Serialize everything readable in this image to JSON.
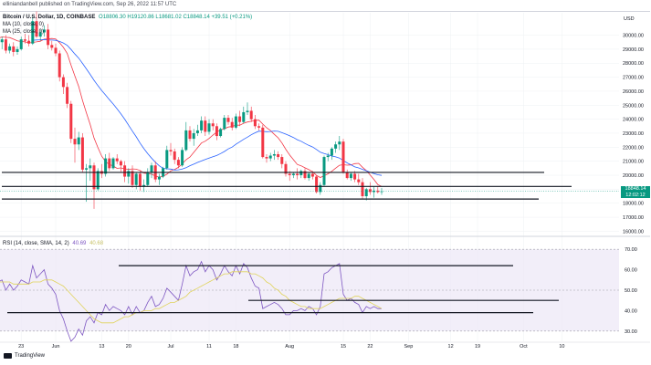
{
  "header": {
    "text": "elliniandanbell published on TradingView.com, Sep 26, 2022 11:57 UTC"
  },
  "legend": {
    "symbol": "Bitcoin / U.S. Dollar, 1D, COINBASE",
    "ohlc": "O18806.30 H19120.86 L18681.02 C18848.14 +39.51 (+0.21%)",
    "ma1": "MA (10, close, 0)",
    "ma2": "MA (25, close, 0)"
  },
  "price_badge": {
    "price": "18848.14",
    "countdown": "12:02:12"
  },
  "rsi_legend": {
    "name": "RSI (14, close, SMA, 14, 2)",
    "value1": "40.69",
    "value2": "40.68"
  },
  "footer": {
    "brand": "TradingView"
  },
  "colors": {
    "up": "#089981",
    "down": "#f23645",
    "ma_fast": "#f23645",
    "ma_slow": "#2962ff",
    "rsi": "#7e57c2",
    "rsi_ma": "#e0d35a",
    "rsi_band": "#ede7f6",
    "grid": "#eef0f3"
  },
  "chart_data": [
    {
      "type": "candlestick",
      "title": "Bitcoin / U.S. Dollar, 1D, COINBASE",
      "y_axis_label": "USD",
      "ylim": [
        15700,
        31600
      ],
      "y_ticks": [
        16000,
        17000,
        18000,
        19000,
        20000,
        21000,
        22000,
        23000,
        24000,
        25000,
        26000,
        27000,
        28000,
        29000,
        30000
      ],
      "x_labels": [
        "23",
        "Jun",
        "13",
        "20",
        "Jul",
        "11",
        "18",
        "Aug",
        "15",
        "22",
        "Sep",
        "12",
        "19",
        "Oct",
        "10"
      ],
      "x_label_days": [
        -9,
        0,
        12,
        19,
        30,
        40,
        47,
        61,
        75,
        82,
        92,
        103,
        110,
        122,
        132
      ],
      "candles_day_offset_from_jun1": -30,
      "candles": [
        [
          29000,
          29500,
          28500,
          29300
        ],
        [
          29300,
          30200,
          29000,
          29900
        ],
        [
          29900,
          30400,
          29500,
          30000
        ],
        [
          30000,
          30500,
          29800,
          30200
        ],
        [
          30200,
          30400,
          28800,
          29100
        ],
        [
          29100,
          29300,
          28600,
          29200
        ],
        [
          29200,
          29500,
          28700,
          28900
        ],
        [
          28900,
          29300,
          28300,
          29100
        ],
        [
          29100,
          29600,
          28900,
          29400
        ],
        [
          29400,
          30100,
          29200,
          29900
        ],
        [
          29900,
          30600,
          29600,
          30300
        ],
        [
          30300,
          31000,
          30000,
          30100
        ],
        [
          30100,
          30500,
          29600,
          29800
        ],
        [
          29800,
          30400,
          29500,
          30300
        ],
        [
          30300,
          30800,
          30000,
          30600
        ],
        [
          30600,
          30900,
          29200,
          29500
        ],
        [
          29500,
          29900,
          29000,
          29700
        ],
        [
          29700,
          30000,
          28700,
          28900
        ],
        [
          28900,
          29400,
          28700,
          29200
        ],
        [
          29200,
          29500,
          28500,
          28800
        ],
        [
          28800,
          29200,
          28600,
          29000
        ],
        [
          29000,
          29900,
          28900,
          29700
        ],
        [
          29700,
          30100,
          29400,
          29600
        ],
        [
          29600,
          30000,
          29200,
          29400
        ],
        [
          29400,
          31300,
          29300,
          31000
        ],
        [
          31000,
          31700,
          29800,
          29900
        ],
        [
          29900,
          30400,
          29600,
          30200
        ],
        [
          30200,
          30700,
          29900,
          30400
        ],
        [
          30400,
          30800,
          29000,
          29300
        ],
        [
          29300,
          29600,
          28900,
          29100
        ],
        [
          29100,
          29400,
          28500,
          28700
        ],
        [
          28700,
          28900,
          26700,
          27000
        ],
        [
          27000,
          27200,
          25800,
          26300
        ],
        [
          26300,
          26600,
          24800,
          25100
        ],
        [
          25100,
          25300,
          22300,
          22600
        ],
        [
          22600,
          23400,
          20900,
          22200
        ],
        [
          22200,
          23100,
          21800,
          22700
        ],
        [
          22700,
          23000,
          20200,
          20400
        ],
        [
          20400,
          20800,
          18100,
          20500
        ],
        [
          20500,
          21200,
          19600,
          20700
        ],
        [
          20700,
          20900,
          17600,
          19000
        ],
        [
          19000,
          20500,
          18900,
          20300
        ],
        [
          20300,
          20800,
          19800,
          20100
        ],
        [
          20100,
          21500,
          19900,
          21200
        ],
        [
          21200,
          21600,
          20300,
          20500
        ],
        [
          20500,
          21300,
          20400,
          21200
        ],
        [
          21200,
          21500,
          20800,
          21000
        ],
        [
          21000,
          21100,
          20200,
          20700
        ],
        [
          20700,
          21000,
          19500,
          19900
        ],
        [
          19900,
          20500,
          19400,
          20300
        ],
        [
          20300,
          20700,
          19100,
          19300
        ],
        [
          19300,
          20200,
          19000,
          20100
        ],
        [
          20100,
          20300,
          18900,
          19200
        ],
        [
          19200,
          19700,
          18800,
          19300
        ],
        [
          19300,
          20500,
          19200,
          20200
        ],
        [
          20200,
          20900,
          19800,
          20700
        ],
        [
          20700,
          21000,
          19500,
          19700
        ],
        [
          19700,
          20100,
          19300,
          19900
        ],
        [
          19900,
          20600,
          19800,
          20500
        ],
        [
          20500,
          22100,
          20400,
          21800
        ],
        [
          21800,
          22300,
          21400,
          21700
        ],
        [
          21700,
          21900,
          20800,
          21100
        ],
        [
          21100,
          21300,
          20500,
          20700
        ],
        [
          20700,
          22000,
          20600,
          21800
        ],
        [
          21800,
          23800,
          21700,
          23200
        ],
        [
          23200,
          23500,
          22400,
          22600
        ],
        [
          22600,
          23300,
          22100,
          23000
        ],
        [
          23000,
          23600,
          22800,
          23200
        ],
        [
          23200,
          24200,
          23000,
          23900
        ],
        [
          23900,
          24200,
          22800,
          23100
        ],
        [
          23100,
          24000,
          22900,
          23700
        ],
        [
          23700,
          24000,
          23200,
          23500
        ],
        [
          23500,
          23700,
          22500,
          22800
        ],
        [
          22800,
          23400,
          22700,
          23300
        ],
        [
          23300,
          24300,
          23200,
          24100
        ],
        [
          24100,
          24300,
          23600,
          23800
        ],
        [
          23800,
          24100,
          23200,
          23400
        ],
        [
          23400,
          24400,
          23300,
          24200
        ],
        [
          24200,
          24600,
          23500,
          23800
        ],
        [
          23800,
          24900,
          23700,
          24500
        ],
        [
          24500,
          25200,
          24300,
          24600
        ],
        [
          24600,
          24900,
          23800,
          24000
        ],
        [
          24000,
          24300,
          23300,
          23500
        ],
        [
          23500,
          23700,
          23200,
          23400
        ],
        [
          23400,
          23600,
          21200,
          21300
        ],
        [
          21300,
          21500,
          20900,
          21200
        ],
        [
          21200,
          21600,
          21000,
          21400
        ],
        [
          21400,
          21800,
          21100,
          21500
        ],
        [
          21500,
          21700,
          21100,
          21300
        ],
        [
          21300,
          21500,
          20500,
          20800
        ],
        [
          20800,
          21000,
          19900,
          20100
        ],
        [
          20100,
          20300,
          19600,
          20000
        ],
        [
          20000,
          20200,
          19800,
          20100
        ],
        [
          20100,
          20500,
          19700,
          20000
        ],
        [
          20000,
          20400,
          19800,
          20300
        ],
        [
          20300,
          20500,
          19700,
          19800
        ],
        [
          19800,
          20200,
          19600,
          20100
        ],
        [
          20100,
          20300,
          19700,
          19900
        ],
        [
          19900,
          20000,
          18700,
          18800
        ],
        [
          18800,
          19500,
          18600,
          19300
        ],
        [
          19300,
          21400,
          19200,
          21300
        ],
        [
          21300,
          21600,
          21000,
          21400
        ],
        [
          21400,
          22000,
          21100,
          21900
        ],
        [
          21900,
          22400,
          21600,
          22200
        ],
        [
          22200,
          22800,
          21800,
          22400
        ],
        [
          22400,
          22600,
          20100,
          20200
        ],
        [
          20200,
          20400,
          19700,
          19800
        ],
        [
          19800,
          20200,
          19600,
          20100
        ],
        [
          20100,
          20300,
          19500,
          19700
        ],
        [
          19700,
          20100,
          19300,
          19500
        ],
        [
          19500,
          19800,
          18300,
          18500
        ],
        [
          18500,
          19100,
          18200,
          19000
        ],
        [
          19000,
          19500,
          18600,
          18800
        ],
        [
          18800,
          19200,
          18400,
          18900
        ],
        [
          18900,
          19200,
          18700,
          18800
        ],
        [
          18800,
          19100,
          18600,
          18848
        ]
      ],
      "support_resistance_lines": [
        20200,
        19200,
        18300
      ],
      "last_price": 18848.14
    },
    {
      "type": "line",
      "title": "RSI (14, close, SMA, 14, 2)",
      "ylim": [
        25,
        75
      ],
      "y_ticks": [
        30,
        40,
        50,
        60,
        70
      ],
      "bands": [
        30,
        50,
        70
      ],
      "series": [
        {
          "name": "RSI",
          "values": [
            48,
            50,
            52,
            55,
            50,
            49,
            47,
            50,
            53,
            57,
            60,
            56,
            54,
            58,
            60,
            54,
            55,
            50,
            53,
            50,
            52,
            55,
            54,
            53,
            62,
            56,
            58,
            60,
            53,
            51,
            48,
            40,
            36,
            30,
            25,
            27,
            31,
            28,
            35,
            37,
            34,
            39,
            38,
            43,
            40,
            42,
            41,
            40,
            38,
            42,
            38,
            42,
            39,
            40,
            44,
            47,
            42,
            43,
            46,
            51,
            49,
            47,
            45,
            53,
            62,
            57,
            59,
            60,
            64,
            59,
            62,
            60,
            55,
            58,
            62,
            59,
            57,
            62,
            58,
            63,
            61,
            56,
            52,
            51,
            41,
            42,
            43,
            44,
            43,
            41,
            38,
            38,
            40,
            40,
            41,
            40,
            42,
            41,
            38,
            42,
            58,
            59,
            61,
            62,
            63,
            48,
            45,
            46,
            44,
            43,
            39,
            42,
            41,
            42,
            41,
            41
          ]
        },
        {
          "name": "SMA",
          "values": [
            50,
            50,
            50,
            51,
            51,
            51,
            51,
            51,
            51,
            52,
            53,
            53,
            53,
            54,
            54,
            54,
            54,
            54,
            54,
            53,
            53,
            53,
            53,
            53,
            54,
            54,
            54,
            55,
            55,
            55,
            54,
            53,
            52,
            50,
            48,
            46,
            44,
            42,
            40,
            38,
            36,
            35,
            34,
            34,
            34,
            34,
            35,
            36,
            37,
            37,
            38,
            39,
            39,
            40,
            40,
            40,
            41,
            41,
            42,
            43,
            44,
            44,
            45,
            46,
            47,
            49,
            50,
            51,
            52,
            53,
            54,
            55,
            56,
            57,
            58,
            58,
            59,
            59,
            59,
            59,
            59,
            58,
            58,
            57,
            56,
            54,
            53,
            51,
            50,
            48,
            47,
            45,
            44,
            43,
            42,
            42,
            41,
            41,
            41,
            41,
            42,
            43,
            44,
            45,
            46,
            46,
            46,
            46,
            47,
            47,
            46,
            45,
            44,
            43,
            42,
            41
          ]
        }
      ],
      "annotation_lines": [
        62,
        45,
        39
      ]
    }
  ]
}
